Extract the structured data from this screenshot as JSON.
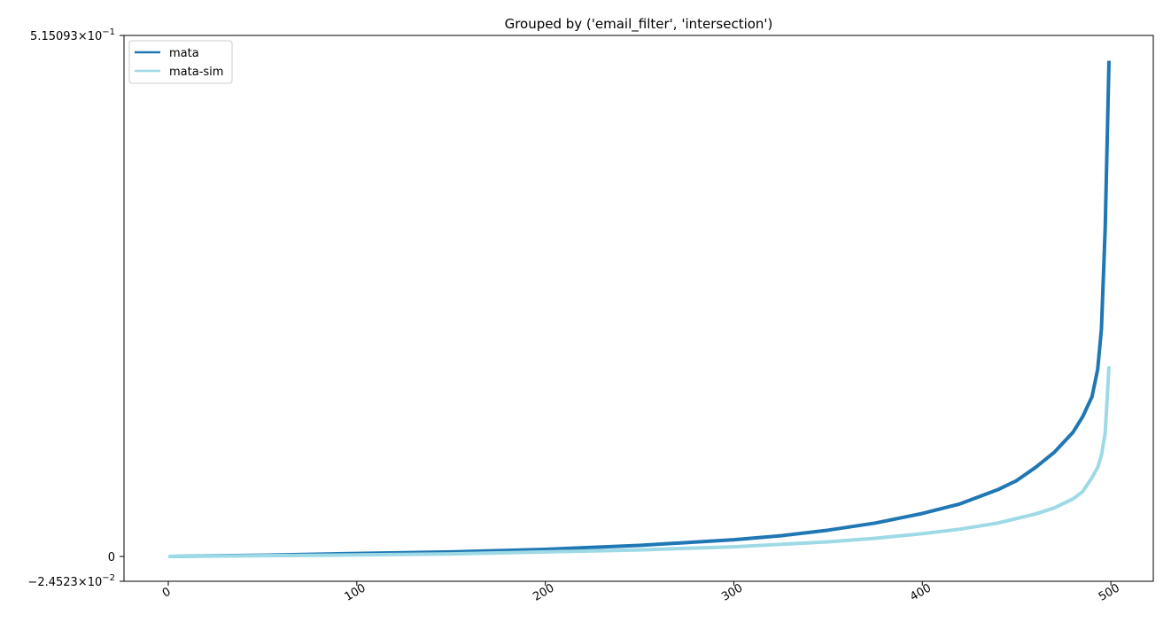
{
  "chart_data": {
    "type": "line",
    "title": "Grouped by ('email_filter', 'intersection')",
    "xlabel": "",
    "ylabel": "",
    "xlim": [
      -23.5,
      522.5
    ],
    "ylim": [
      -0.024523,
      0.515093
    ],
    "grid": false,
    "legend_position": "top-left",
    "x_ticks": [
      {
        "value": 0,
        "label": "0"
      },
      {
        "value": 100,
        "label": "100"
      },
      {
        "value": 200,
        "label": "200"
      },
      {
        "value": 300,
        "label": "300"
      },
      {
        "value": 400,
        "label": "400"
      },
      {
        "value": 500,
        "label": "500"
      }
    ],
    "y_ticks": [
      {
        "value": -0.024523,
        "label": "−2.4523",
        "exp": "−2"
      },
      {
        "value": 0,
        "label": "0",
        "exp": ""
      },
      {
        "value": 0.515093,
        "label": "5.15093",
        "exp": "−1"
      }
    ],
    "x": [
      0,
      50,
      100,
      150,
      200,
      250,
      300,
      325,
      350,
      375,
      400,
      420,
      440,
      450,
      460,
      470,
      480,
      485,
      490,
      493,
      495,
      497,
      499
    ],
    "series": [
      {
        "name": "mata",
        "color": "#1f77b4",
        "values": [
          0.0,
          0.0012,
          0.003,
          0.0045,
          0.007,
          0.011,
          0.0165,
          0.0205,
          0.026,
          0.033,
          0.0425,
          0.052,
          0.066,
          0.075,
          0.088,
          0.103,
          0.123,
          0.138,
          0.158,
          0.185,
          0.225,
          0.325,
          0.49
        ]
      },
      {
        "name": "mata-sim",
        "color": "#9ed9e6",
        "values": [
          0.0,
          0.0008,
          0.0015,
          0.0025,
          0.0045,
          0.0065,
          0.0095,
          0.012,
          0.0145,
          0.018,
          0.0225,
          0.027,
          0.033,
          0.0375,
          0.042,
          0.048,
          0.057,
          0.064,
          0.078,
          0.088,
          0.1,
          0.122,
          0.188
        ]
      }
    ]
  }
}
